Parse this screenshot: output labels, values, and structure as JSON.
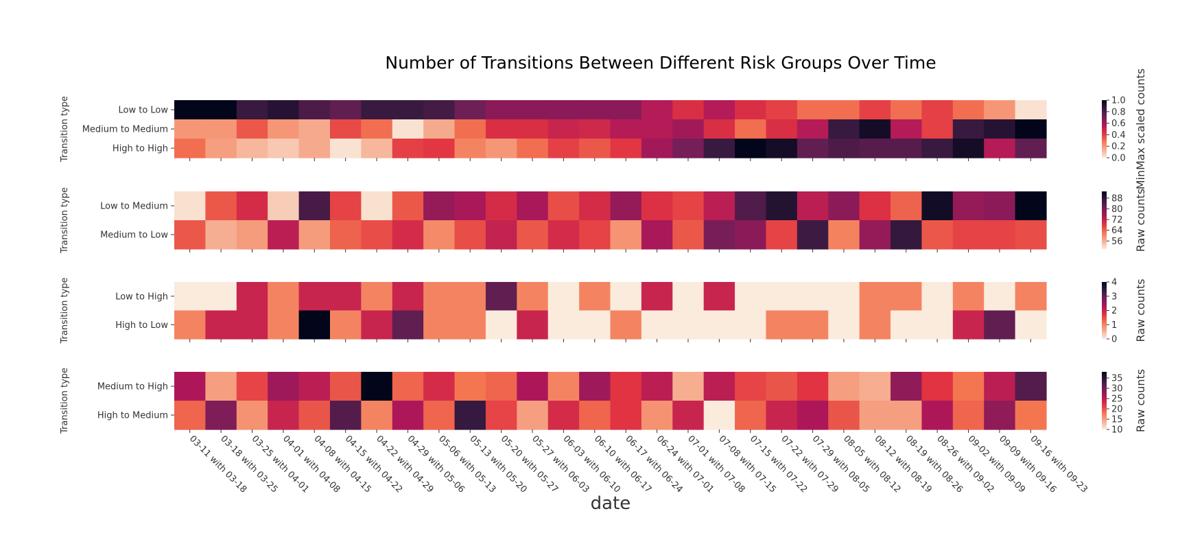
{
  "chart_data": {
    "type": "heatmap",
    "title": "Number of Transitions Between Different Risk Groups Over Time",
    "xlabel": "date",
    "ylabel": "Transition type",
    "colormap": "rocket_r",
    "colormap_stops": [
      "#faebdd",
      "#f6ad90",
      "#f37651",
      "#e13342",
      "#ad1759",
      "#701f57",
      "#35193e",
      "#03051a"
    ],
    "categories": [
      "03-11 with 03-18",
      "03-18 with 03-25",
      "03-25 with 04-01",
      "04-01 with 04-08",
      "04-08 with 04-15",
      "04-15 with 04-22",
      "04-22 with 04-29",
      "04-29 with 05-06",
      "05-06 with 05-13",
      "05-13 with 05-20",
      "05-20 with 05-27",
      "05-27 with 06-03",
      "06-03 with 06-10",
      "06-10 with 06-17",
      "06-17 with 06-24",
      "06-24 with 07-01",
      "07-01 with 07-08",
      "07-08 with 07-15",
      "07-15 with 07-22",
      "07-22 with 07-29",
      "07-29 with 08-05",
      "08-05 with 08-12",
      "08-12 with 08-19",
      "08-19 with 08-26",
      "08-26 with 09-02",
      "09-02 with 09-09",
      "09-09 with 09-16",
      "09-16 with 09-23"
    ],
    "panels": [
      {
        "colorbar_label": "MinMax scaled counts",
        "vmin": 0.0,
        "vmax": 1.0,
        "ticks": [
          "0.0",
          "0.2",
          "0.4",
          "0.6",
          "0.8",
          "1.0"
        ],
        "rows": [
          {
            "name": "Low to Low",
            "values": [
              1.0,
              1.0,
              0.85,
              0.9,
              0.8,
              0.75,
              0.85,
              0.85,
              0.82,
              0.72,
              0.65,
              0.65,
              0.65,
              0.65,
              0.65,
              0.55,
              0.45,
              0.55,
              0.45,
              0.4,
              0.3,
              0.3,
              0.4,
              0.3,
              0.4,
              0.3,
              0.2,
              0.02
            ]
          },
          {
            "name": "Medium to Medium",
            "values": [
              0.2,
              0.2,
              0.35,
              0.2,
              0.15,
              0.38,
              0.3,
              0.02,
              0.15,
              0.3,
              0.45,
              0.45,
              0.5,
              0.48,
              0.55,
              0.55,
              0.6,
              0.45,
              0.3,
              0.45,
              0.55,
              0.85,
              0.95,
              0.55,
              0.4,
              0.85,
              0.9,
              1.0
            ]
          },
          {
            "name": "High to High",
            "values": [
              0.3,
              0.18,
              0.12,
              0.08,
              0.15,
              0.02,
              0.12,
              0.4,
              0.42,
              0.25,
              0.2,
              0.3,
              0.4,
              0.35,
              0.42,
              0.6,
              0.7,
              0.85,
              1.0,
              0.95,
              0.75,
              0.8,
              0.78,
              0.78,
              0.85,
              0.95,
              0.55,
              0.75
            ]
          }
        ]
      },
      {
        "colorbar_label": "Raw counts",
        "vmin": 50,
        "vmax": 93,
        "ticks": [
          "56",
          "64",
          "72",
          "80",
          "88"
        ],
        "rows": [
          {
            "name": "Low to Medium",
            "values": [
              51,
              65,
              70,
              53,
              85,
              67,
              51,
              65,
              77,
              75,
              70,
              75,
              66,
              70,
              77,
              69,
              67,
              73,
              84,
              89,
              73,
              78,
              69,
              64,
              91,
              77,
              78,
              93
            ]
          },
          {
            "name": "Medium to Low",
            "values": [
              65,
              56,
              58,
              73,
              58,
              64,
              66,
              70,
              60,
              66,
              72,
              65,
              70,
              67,
              59,
              75,
              65,
              80,
              78,
              67,
              86,
              61,
              77,
              87,
              65,
              67,
              67,
              66
            ]
          }
        ]
      },
      {
        "colorbar_label": "Raw counts",
        "vmin": 0,
        "vmax": 4,
        "ticks": [
          "0",
          "1",
          "2",
          "3",
          "4"
        ],
        "rows": [
          {
            "name": "Low to High",
            "values": [
              0,
              0,
              2,
              1,
              2,
              2,
              1,
              2,
              1,
              1,
              3,
              1,
              0,
              1,
              0,
              2,
              0,
              2,
              0,
              0,
              0,
              0,
              1,
              1,
              0,
              1,
              0,
              1
            ]
          },
          {
            "name": "High to Low",
            "values": [
              1,
              2,
              2,
              1,
              4,
              1,
              2,
              3,
              1,
              1,
              0,
              2,
              0,
              0,
              1,
              0,
              0,
              0,
              0,
              1,
              1,
              0,
              1,
              0,
              0,
              2,
              3,
              0
            ]
          }
        ]
      },
      {
        "colorbar_label": "Raw counts",
        "vmin": 10,
        "vmax": 38,
        "ticks": [
          "10",
          "15",
          "20",
          "25",
          "30",
          "35"
        ],
        "rows": [
          {
            "name": "Medium to High",
            "values": [
              26,
              15,
              21,
              27,
              25,
              20,
              38,
              19,
              23,
              18,
              19,
              26,
              17,
              27,
              22,
              25,
              14,
              25,
              21,
              20,
              22,
              15,
              14,
              28,
              22,
              18,
              25,
              32
            ]
          },
          {
            "name": "High to Medium",
            "values": [
              19,
              29,
              16,
              24,
              20,
              32,
              17,
              26,
              19,
              34,
              21,
              15,
              23,
              19,
              22,
              16,
              24,
              10,
              19,
              24,
              26,
              20,
              15,
              15,
              26,
              19,
              28,
              18
            ]
          }
        ]
      }
    ]
  }
}
